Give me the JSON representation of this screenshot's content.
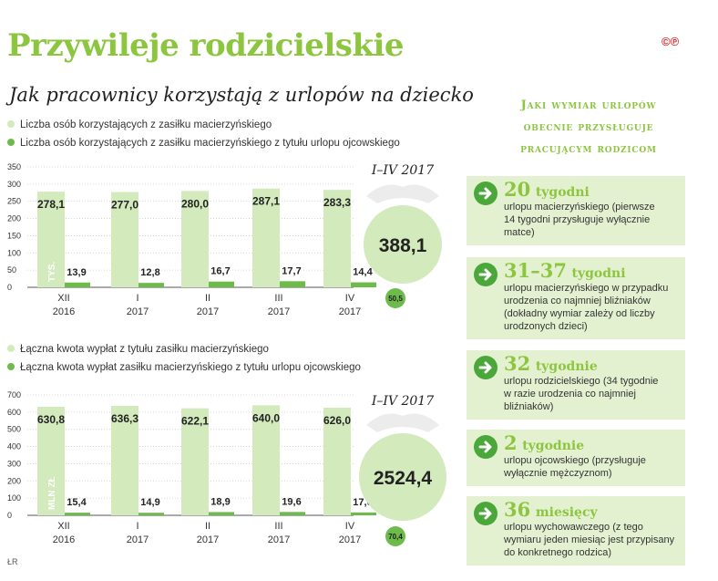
{
  "header": {
    "title": "Przywileje rodzicielskie",
    "subtitle": "Jak pracownicy korzystają z urlopów na dziecko",
    "copyright": "©℗"
  },
  "chart_data": [
    {
      "type": "bar",
      "legend": [
        {
          "label": "Liczba osób korzystających z zasiłku macierzyńskiego",
          "color": "#d3eabc"
        },
        {
          "label": "Liczba osób korzystających z zasiłku macierzyńskiego z tytułu urlopu ojcowskiego",
          "color": "#6dbb4a"
        }
      ],
      "categories": [
        [
          "XII",
          "2016"
        ],
        [
          "I",
          "2017"
        ],
        [
          "II",
          "2017"
        ],
        [
          "III",
          "2017"
        ],
        [
          "IV",
          "2017"
        ]
      ],
      "series": [
        {
          "values": [
            278.1,
            277.0,
            280.0,
            287.1,
            283.3
          ],
          "labels": [
            "278,1",
            "277,0",
            "280,0",
            "287,1",
            "283,3"
          ],
          "color": "#d3eabc"
        },
        {
          "values": [
            13.9,
            12.8,
            16.7,
            17.7,
            14.4
          ],
          "labels": [
            "13,9",
            "12,8",
            "16,7",
            "17,7",
            "14,4"
          ],
          "color": "#6dbb4a"
        }
      ],
      "unit_label": "TYS.",
      "yticks": [
        0,
        50,
        100,
        150,
        200,
        250,
        300,
        350
      ],
      "ylim": [
        0,
        350
      ],
      "grid": true,
      "summary": {
        "period": "I–IV 2017",
        "total": "388,1",
        "total_value": 388.1,
        "sub": "50,5",
        "sub_value": 50.5
      }
    },
    {
      "type": "bar",
      "legend": [
        {
          "label": "Łączna kwota wypłat z tytułu zasiłku macierzyńskiego",
          "color": "#d3eabc"
        },
        {
          "label": "Łączna kwota wypłat zasiłku macierzyńskiego z tytułu urlopu ojcowskiego",
          "color": "#6dbb4a"
        }
      ],
      "categories": [
        [
          "XII",
          "2016"
        ],
        [
          "I",
          "2017"
        ],
        [
          "II",
          "2017"
        ],
        [
          "III",
          "2017"
        ],
        [
          "IV",
          "2017"
        ]
      ],
      "series": [
        {
          "values": [
            630.8,
            636.3,
            622.1,
            640.0,
            626.0
          ],
          "labels": [
            "630,8",
            "636,3",
            "622,1",
            "640,0",
            "626,0"
          ],
          "color": "#d3eabc"
        },
        {
          "values": [
            15.4,
            14.9,
            18.9,
            19.6,
            17.0
          ],
          "labels": [
            "15,4",
            "14,9",
            "18,9",
            "19,6",
            "17,0"
          ],
          "color": "#6dbb4a"
        }
      ],
      "unit_label": "MLN ZŁ",
      "yticks": [
        0,
        100,
        200,
        300,
        400,
        500,
        600,
        700
      ],
      "ylim": [
        0,
        700
      ],
      "grid": true,
      "summary": {
        "period": "I–IV 2017",
        "total": "2524,4",
        "total_value": 2524.4,
        "sub": "70,4",
        "sub_value": 70.4
      }
    }
  ],
  "side": {
    "heading": [
      "Jaki wymiar urlopów",
      "obecnie przysługuje",
      "pracującym rodzicom"
    ],
    "items": [
      {
        "number": "20",
        "unit": "tygodni",
        "lines": [
          "urlopu macierzyńskiego (pierwsze",
          "14 tygodni przysługuje wyłącznie",
          "matce)"
        ]
      },
      {
        "number": "31–37",
        "unit": "tygodni",
        "lines": [
          "urlopu macierzyńskiego w przypadku",
          "urodzenia co najmniej bliźniaków",
          "(dokładny wymiar zależy od liczby",
          "urodzonych dzieci)"
        ]
      },
      {
        "number": "32",
        "unit": "tygodnie",
        "lines": [
          "urlopu rodzicielskiego (34 tygodnie",
          "w razie urodzenia co najmniej",
          "bliźniaków)"
        ]
      },
      {
        "number": "2",
        "unit": "tygodnie",
        "lines": [
          "urlopu ojcowskiego (przysługuje",
          "wyłącznie mężczyznom)"
        ]
      },
      {
        "number": "36",
        "unit": "miesięcy",
        "lines": [
          "urlopu wychowawczego (z tego",
          "wymiaru jeden miesiąc jest przypisany",
          "do konkretnego rodzica)"
        ]
      }
    ]
  },
  "footer": {
    "credit": "ŁR"
  }
}
